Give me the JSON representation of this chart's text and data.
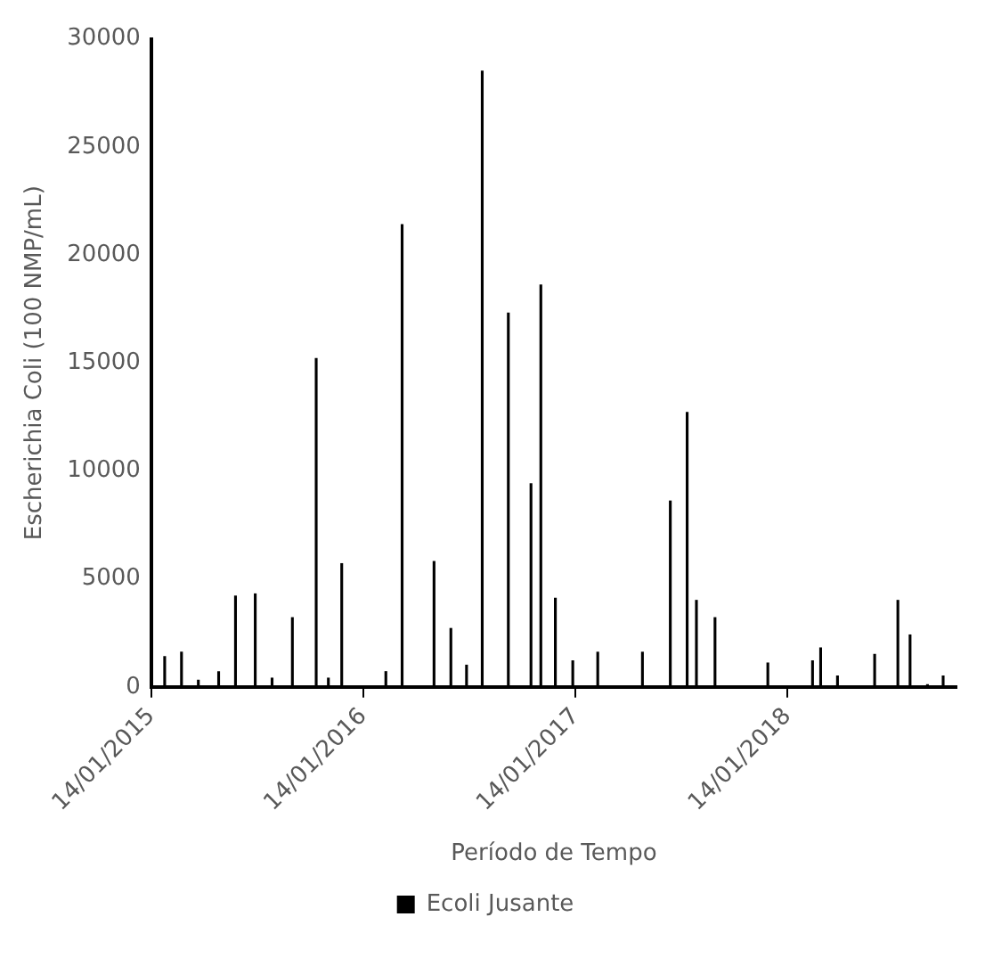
{
  "chart_data": {
    "type": "bar",
    "xlabel": "Período de Tempo",
    "ylabel": "Escherichia Coli (100 NMP/mL)",
    "x": [
      "2015-02-06",
      "2015-03-07",
      "2015-04-05",
      "2015-05-10",
      "2015-06-08",
      "2015-07-12",
      "2015-08-10",
      "2015-09-14",
      "2015-10-25",
      "2015-11-15",
      "2015-12-08",
      "2016-02-22",
      "2016-03-21",
      "2016-05-15",
      "2016-06-13",
      "2016-07-10",
      "2016-08-06",
      "2016-09-20",
      "2016-10-29",
      "2016-11-15",
      "2016-12-10",
      "2017-01-09",
      "2017-02-21",
      "2017-05-09",
      "2017-06-26",
      "2017-07-25",
      "2017-08-10",
      "2017-09-11",
      "2017-12-11",
      "2018-02-26",
      "2018-03-12",
      "2018-04-10",
      "2018-06-13",
      "2018-07-23",
      "2018-08-13",
      "2018-09-12",
      "2018-10-09"
    ],
    "series": [
      {
        "name": "Ecoli Jusante",
        "color": "#000000",
        "values": [
          1400,
          1600,
          300,
          700,
          4200,
          4300,
          400,
          3200,
          15200,
          400,
          5700,
          700,
          21400,
          5800,
          2700,
          1000,
          28500,
          17300,
          9400,
          18600,
          4100,
          1200,
          1600,
          1600,
          8600,
          12700,
          4000,
          3200,
          1100,
          1200,
          1800,
          500,
          1500,
          4000,
          2400,
          100,
          500
        ]
      }
    ],
    "xlim": [
      "2015-01-14",
      "2018-11-01"
    ],
    "xticks": [
      {
        "value": "2015-01-14",
        "label": "14/01/2015"
      },
      {
        "value": "2016-01-14",
        "label": "14/01/2016"
      },
      {
        "value": "2017-01-14",
        "label": "14/01/2017"
      },
      {
        "value": "2018-01-14",
        "label": "14/01/2018"
      }
    ],
    "ylim": [
      0,
      30000
    ],
    "yticks": [
      0,
      5000,
      10000,
      15000,
      20000,
      25000,
      30000
    ],
    "grid": false,
    "legend": "bottom"
  }
}
